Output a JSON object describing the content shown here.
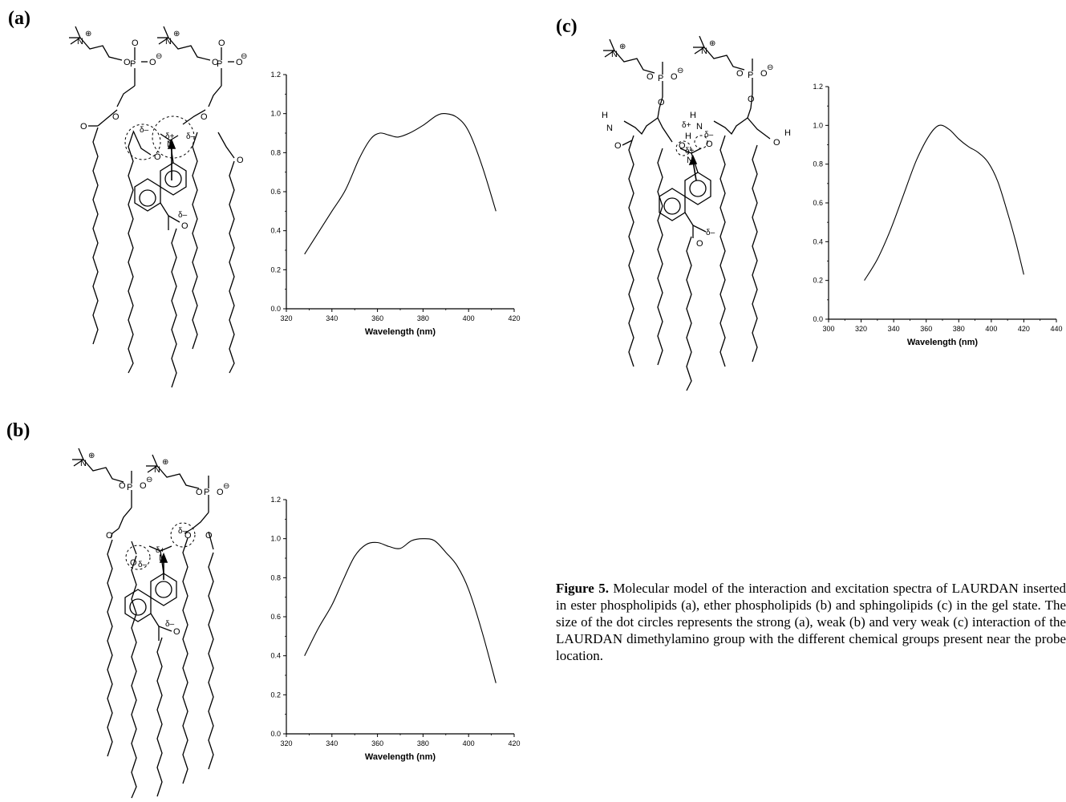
{
  "panels": {
    "a": {
      "label": "(a)"
    },
    "b": {
      "label": "(b)"
    },
    "c": {
      "label": "(c)"
    }
  },
  "molecule_text": {
    "plus": "⊕",
    "minus": "⊖",
    "N": "N",
    "O": "O",
    "P": "P",
    "H": "H",
    "delta_plus": "δ+",
    "delta_minus": "δ–"
  },
  "chart_data": [
    {
      "type": "line",
      "panel": "a",
      "xlabel": "Wavelength (nm)",
      "ylabel": "",
      "xlim": [
        320,
        420
      ],
      "ylim": [
        0.0,
        1.2
      ],
      "xticks": [
        "320",
        "340",
        "360",
        "380",
        "400",
        "420"
      ],
      "yticks": [
        "0.0",
        "0.2",
        "0.4",
        "0.6",
        "0.8",
        "1.0",
        "1.2"
      ],
      "x": [
        328,
        334,
        340,
        346,
        352,
        357,
        361,
        365,
        369,
        374,
        380,
        386,
        390,
        395,
        400,
        406,
        412
      ],
      "y": [
        0.28,
        0.39,
        0.5,
        0.61,
        0.77,
        0.87,
        0.9,
        0.89,
        0.88,
        0.9,
        0.94,
        0.99,
        1.0,
        0.98,
        0.91,
        0.73,
        0.5
      ]
    },
    {
      "type": "line",
      "panel": "b",
      "xlabel": "Wavelength (nm)",
      "ylabel": "",
      "xlim": [
        320,
        420
      ],
      "ylim": [
        0.0,
        1.2
      ],
      "xticks": [
        "320",
        "340",
        "360",
        "380",
        "400",
        "420"
      ],
      "yticks": [
        "0.0",
        "0.2",
        "0.4",
        "0.6",
        "0.8",
        "1.0",
        "1.2"
      ],
      "x": [
        328,
        334,
        340,
        345,
        350,
        355,
        360,
        365,
        370,
        375,
        380,
        385,
        390,
        395,
        400,
        406,
        412
      ],
      "y": [
        0.4,
        0.54,
        0.66,
        0.79,
        0.91,
        0.97,
        0.98,
        0.96,
        0.95,
        0.99,
        1.0,
        0.99,
        0.93,
        0.86,
        0.74,
        0.52,
        0.26
      ]
    },
    {
      "type": "line",
      "panel": "c",
      "xlabel": "Wavelength (nm)",
      "ylabel": "",
      "xlim": [
        300,
        440
      ],
      "ylim": [
        0.0,
        1.2
      ],
      "xticks": [
        "300",
        "320",
        "340",
        "360",
        "380",
        "400",
        "420",
        "440"
      ],
      "yticks": [
        "0.0",
        "0.2",
        "0.4",
        "0.6",
        "0.8",
        "1.0",
        "1.2"
      ],
      "x": [
        322,
        330,
        338,
        346,
        354,
        362,
        368,
        374,
        380,
        386,
        392,
        398,
        404,
        410,
        415,
        420
      ],
      "y": [
        0.2,
        0.31,
        0.46,
        0.64,
        0.82,
        0.95,
        1.0,
        0.98,
        0.93,
        0.89,
        0.86,
        0.81,
        0.71,
        0.55,
        0.4,
        0.23
      ]
    }
  ],
  "caption": {
    "figure_label": "Figure 5.",
    "text": " Molecular model of the interaction and excitation spectra of LAURDAN inserted in ester phospholipids (a), ether phospholipids (b) and sphingolipids (c) in the gel state. The size of the dot circles represents the strong (a), weak (b) and very weak (c) interaction of the LAURDAN dimethylamino group with the different chemical groups present near the probe location."
  }
}
